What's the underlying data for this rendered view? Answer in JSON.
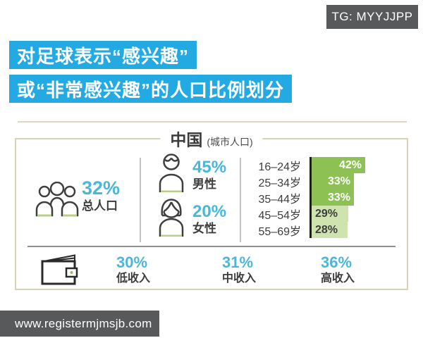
{
  "badge": {
    "text": "TG: MYYJJPP"
  },
  "title": {
    "line1": "对足球表示“感兴趣”",
    "line2": "或“非常感兴趣”的人口比例划分"
  },
  "panel": {
    "header": {
      "country": "中国",
      "note": "(城市人口)"
    },
    "total": {
      "value": "32%",
      "label": "总人口"
    },
    "gender": [
      {
        "value": "45%",
        "label": "男性"
      },
      {
        "value": "20%",
        "label": "女性"
      }
    ],
    "income": [
      {
        "value": "30%",
        "label": "低收入"
      },
      {
        "value": "31%",
        "label": "中收入"
      },
      {
        "value": "36%",
        "label": "高收入"
      }
    ]
  },
  "footer": {
    "url": "www.registermjmsjb.com"
  },
  "icons": {
    "total": "people-group-icon",
    "male": "male-person-icon",
    "female": "female-person-icon",
    "income": "wallet-icon"
  },
  "colors": {
    "title_background": "#24aae2",
    "stat_cyan": "#48b7da",
    "bar_green_dark": "#8dc153",
    "bar_green_light": "#cfe3ae",
    "panel_border": "#d8d3b6",
    "badge_background": "#58595b",
    "text_dark": "#3d3d3d"
  },
  "chart_data": [
    {
      "type": "bar",
      "group": "age",
      "orientation": "horizontal",
      "categories": [
        "16–24岁",
        "25–34岁",
        "35–44岁",
        "45–54岁",
        "55–69岁"
      ],
      "values": [
        42,
        33,
        33,
        29,
        28
      ],
      "unit": "%",
      "xlim": [
        0,
        45
      ],
      "bar_colors": [
        "#8dc153",
        "#8dc153",
        "#8dc153",
        "#cfe3ae",
        "#cfe3ae"
      ],
      "value_label_colors": [
        "#ffffff",
        "#ffffff",
        "#ffffff",
        "#3d3d3d",
        "#3d3d3d"
      ]
    },
    {
      "type": "bar",
      "group": "overall_and_gender",
      "categories": [
        "总人口",
        "男性",
        "女性"
      ],
      "values": [
        32,
        45,
        20
      ],
      "unit": "%"
    },
    {
      "type": "bar",
      "group": "income",
      "categories": [
        "低收入",
        "中收入",
        "高收入"
      ],
      "values": [
        30,
        31,
        36
      ],
      "unit": "%"
    }
  ]
}
